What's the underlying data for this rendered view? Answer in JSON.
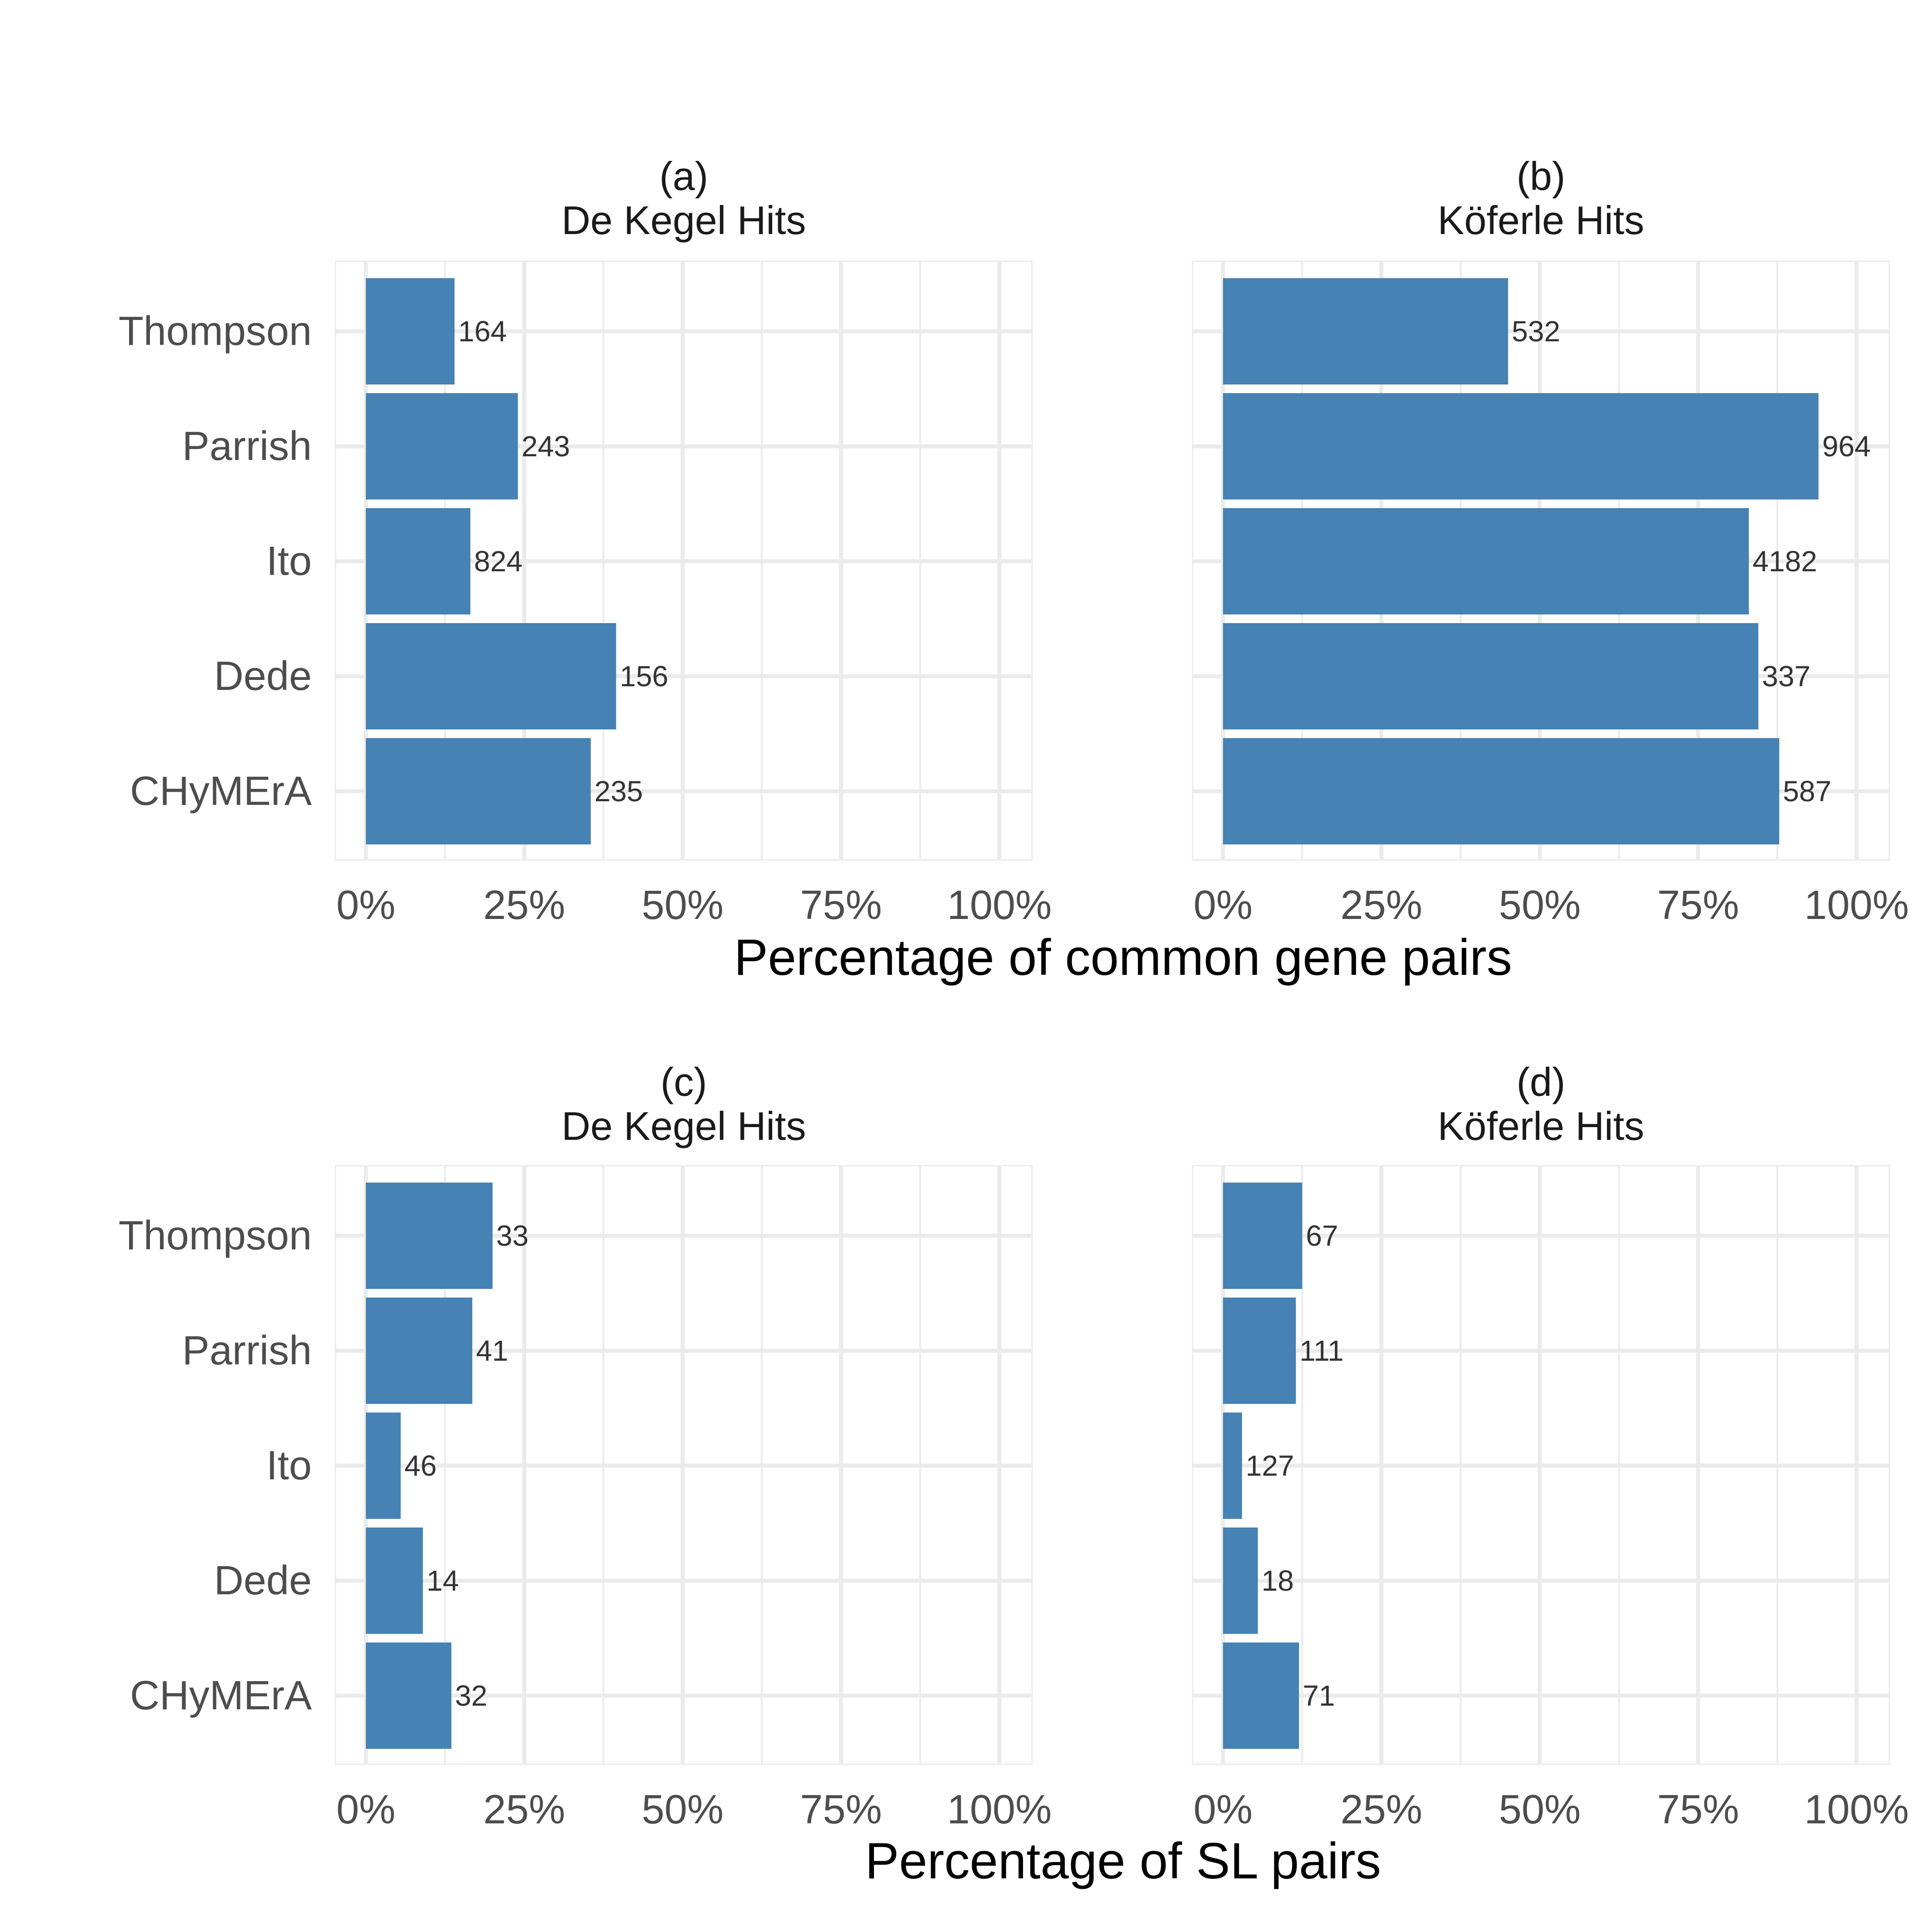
{
  "figure": {
    "bar_color": "#4682B4",
    "grid_color": "#EBEBEB",
    "x_axis_titles": [
      "Percentage of common gene pairs",
      "Percentage of SL pairs"
    ]
  },
  "chart_data": [
    {
      "type": "bar",
      "orientation": "horizontal",
      "panel": "(a)",
      "title": "De Kegel Hits",
      "categories": [
        "Thompson",
        "Parrish",
        "Ito",
        "Dede",
        "CHyMErA"
      ],
      "values": [
        14,
        24,
        16.5,
        39.5,
        35.5
      ],
      "data_labels": [
        "164",
        "243",
        "824",
        "156",
        "235"
      ],
      "xlim": [
        0,
        100
      ],
      "x_ticks": [
        "0%",
        "25%",
        "50%",
        "75%",
        "100%"
      ],
      "xlabel": "Percentage of common gene pairs",
      "grid": true
    },
    {
      "type": "bar",
      "orientation": "horizontal",
      "panel": "(b)",
      "title": "Köferle Hits",
      "categories": [
        "Thompson",
        "Parrish",
        "Ito",
        "Dede",
        "CHyMErA"
      ],
      "values": [
        45,
        94,
        83,
        84.5,
        87.8
      ],
      "data_labels": [
        "532",
        "964",
        "4182",
        "337",
        "587"
      ],
      "xlim": [
        0,
        100
      ],
      "x_ticks": [
        "0%",
        "25%",
        "50%",
        "75%",
        "100%"
      ],
      "xlabel": "Percentage of common gene pairs",
      "grid": true
    },
    {
      "type": "bar",
      "orientation": "horizontal",
      "panel": "(c)",
      "title": "De Kegel Hits",
      "categories": [
        "Thompson",
        "Parrish",
        "Ito",
        "Dede",
        "CHyMErA"
      ],
      "values": [
        20,
        16.8,
        5.5,
        9,
        13.5
      ],
      "data_labels": [
        "33",
        "41",
        "46",
        "14",
        "32"
      ],
      "xlim": [
        0,
        100
      ],
      "x_ticks": [
        "0%",
        "25%",
        "50%",
        "75%",
        "100%"
      ],
      "xlabel": "Percentage of SL pairs",
      "grid": true
    },
    {
      "type": "bar",
      "orientation": "horizontal",
      "panel": "(d)",
      "title": "Köferle Hits",
      "categories": [
        "Thompson",
        "Parrish",
        "Ito",
        "Dede",
        "CHyMErA"
      ],
      "values": [
        12.5,
        11.5,
        3,
        5.5,
        12
      ],
      "data_labels": [
        "67",
        "111",
        "127",
        "18",
        "71"
      ],
      "xlim": [
        0,
        100
      ],
      "x_ticks": [
        "0%",
        "25%",
        "50%",
        "75%",
        "100%"
      ],
      "xlabel": "Percentage of SL pairs",
      "grid": true
    }
  ]
}
